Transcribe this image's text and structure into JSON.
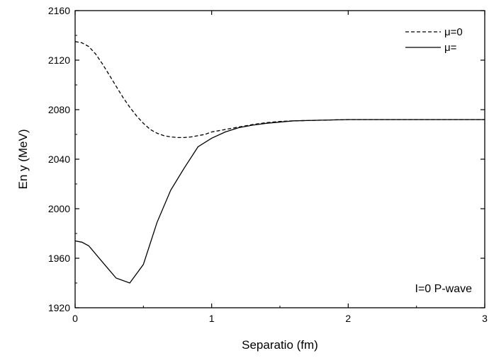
{
  "chart_data": {
    "type": "line",
    "xlabel": "Separatio   (fm)",
    "ylabel": "En     y (MeV)",
    "xlim": [
      0,
      3
    ],
    "ylim": [
      1920,
      2160
    ],
    "xticks": [
      0,
      1,
      2,
      3
    ],
    "xtick_labels": [
      "0",
      "1",
      "2",
      "3"
    ],
    "yticks": [
      1920,
      1960,
      2000,
      2040,
      2080,
      2120,
      2160
    ],
    "ytick_labels": [
      "1920",
      "1960",
      "2000",
      "2040",
      "2080",
      "2120",
      "2160"
    ],
    "grid": false,
    "legend_position": "top-right",
    "annotation": "I=0 P-wave",
    "series": [
      {
        "name": "μ=0",
        "style": "dashed",
        "color": "#000000",
        "x": [
          0,
          0.05,
          0.1,
          0.15,
          0.2,
          0.25,
          0.3,
          0.35,
          0.4,
          0.45,
          0.5,
          0.55,
          0.6,
          0.65,
          0.7,
          0.75,
          0.8,
          0.85,
          0.9,
          0.95,
          1.0,
          1.05,
          1.1,
          1.2,
          1.3,
          1.4,
          1.5,
          1.6,
          1.8,
          2.0,
          2.5,
          3.0
        ],
        "y": [
          2135,
          2134,
          2131,
          2125,
          2117,
          2108,
          2099,
          2090,
          2082,
          2075,
          2069,
          2064,
          2061,
          2059,
          2058,
          2057.5,
          2057.5,
          2058,
          2059,
          2060,
          2062,
          2063,
          2064,
          2066,
          2068,
          2069.5,
          2070.5,
          2071,
          2071.5,
          2072,
          2072,
          2072
        ]
      },
      {
        "name": "μ=",
        "style": "solid",
        "color": "#000000",
        "x": [
          0,
          0.05,
          0.1,
          0.2,
          0.3,
          0.4,
          0.5,
          0.6,
          0.7,
          0.8,
          0.9,
          1.0,
          1.1,
          1.2,
          1.3,
          1.4,
          1.6,
          1.8,
          2.0,
          2.5,
          3.0
        ],
        "y": [
          1974,
          1973,
          1970,
          1957,
          1944,
          1940,
          1955,
          1989,
          2015,
          2033,
          2050,
          2057,
          2062,
          2065.5,
          2067.5,
          2069,
          2071,
          2071.5,
          2072,
          2072,
          2072
        ]
      }
    ]
  }
}
